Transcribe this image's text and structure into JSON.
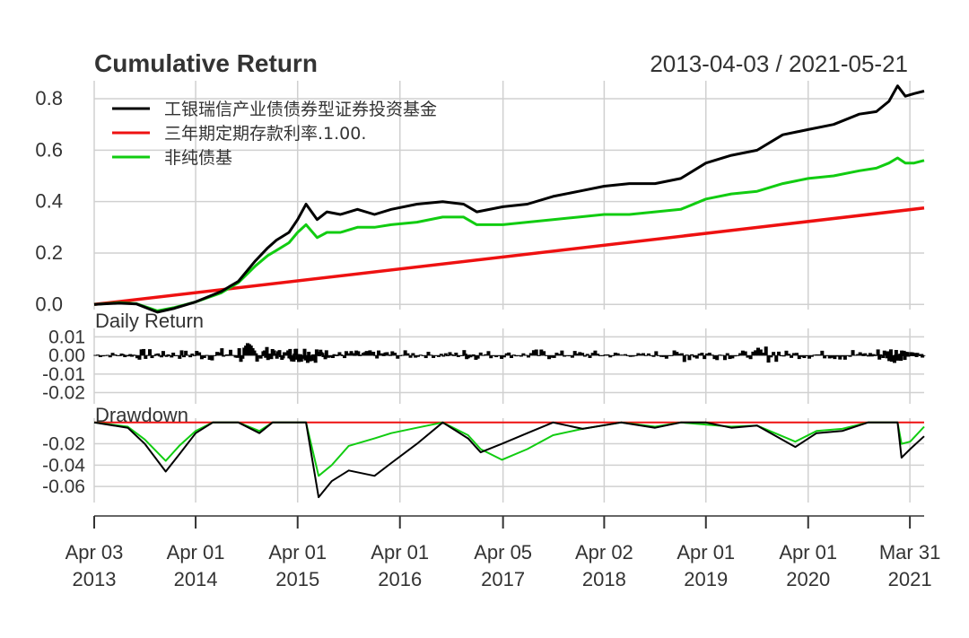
{
  "chart_data": [
    {
      "type": "line",
      "title": "Cumulative Return",
      "date_range": "2013-04-03 / 2021-05-21",
      "x_start": "2013-04-03",
      "x_end": "2021-05-21",
      "ylim": [
        -0.02,
        0.87
      ],
      "yticks": [
        "0.0",
        "0.2",
        "0.4",
        "0.6",
        "0.8"
      ],
      "ytick_values": [
        0.0,
        0.2,
        0.4,
        0.6,
        0.8
      ],
      "grid": true,
      "legend_position": "top-left",
      "series": [
        {
          "name": "工银瑞信产业债债券型证券投资基金",
          "color": "#000000",
          "points": [
            [
              "2013-04-03",
              0.0
            ],
            [
              "2013-07-01",
              0.005
            ],
            [
              "2013-09-01",
              0.002
            ],
            [
              "2013-11-15",
              -0.03
            ],
            [
              "2014-01-15",
              -0.015
            ],
            [
              "2014-04-01",
              0.01
            ],
            [
              "2014-07-01",
              0.05
            ],
            [
              "2014-09-01",
              0.09
            ],
            [
              "2014-11-01",
              0.17
            ],
            [
              "2014-12-15",
              0.22
            ],
            [
              "2015-01-15",
              0.25
            ],
            [
              "2015-03-01",
              0.28
            ],
            [
              "2015-04-01",
              0.33
            ],
            [
              "2015-05-01",
              0.39
            ],
            [
              "2015-06-10",
              0.33
            ],
            [
              "2015-07-15",
              0.36
            ],
            [
              "2015-09-01",
              0.35
            ],
            [
              "2015-11-01",
              0.37
            ],
            [
              "2016-01-01",
              0.35
            ],
            [
              "2016-03-01",
              0.37
            ],
            [
              "2016-06-01",
              0.39
            ],
            [
              "2016-09-01",
              0.4
            ],
            [
              "2016-11-15",
              0.39
            ],
            [
              "2017-01-01",
              0.36
            ],
            [
              "2017-04-05",
              0.38
            ],
            [
              "2017-07-01",
              0.39
            ],
            [
              "2017-10-01",
              0.42
            ],
            [
              "2018-01-01",
              0.44
            ],
            [
              "2018-04-02",
              0.46
            ],
            [
              "2018-07-01",
              0.47
            ],
            [
              "2018-10-01",
              0.47
            ],
            [
              "2019-01-01",
              0.49
            ],
            [
              "2019-04-01",
              0.55
            ],
            [
              "2019-07-01",
              0.58
            ],
            [
              "2019-10-01",
              0.6
            ],
            [
              "2020-01-01",
              0.66
            ],
            [
              "2020-04-01",
              0.68
            ],
            [
              "2020-07-01",
              0.7
            ],
            [
              "2020-10-01",
              0.74
            ],
            [
              "2020-12-01",
              0.75
            ],
            [
              "2021-01-15",
              0.79
            ],
            [
              "2021-02-15",
              0.85
            ],
            [
              "2021-03-15",
              0.81
            ],
            [
              "2021-04-15",
              0.82
            ],
            [
              "2021-05-21",
              0.83
            ]
          ]
        },
        {
          "name": "三年期定期存款利率.1.00.",
          "color": "#ee1111",
          "points": [
            [
              "2013-04-03",
              0.0
            ],
            [
              "2021-05-21",
              0.375
            ]
          ]
        },
        {
          "name": "非纯债基",
          "color": "#11cc11",
          "points": [
            [
              "2013-04-03",
              0.0
            ],
            [
              "2013-07-01",
              0.007
            ],
            [
              "2013-09-01",
              0.003
            ],
            [
              "2013-11-15",
              -0.025
            ],
            [
              "2014-01-15",
              -0.012
            ],
            [
              "2014-04-01",
              0.01
            ],
            [
              "2014-07-01",
              0.045
            ],
            [
              "2014-09-01",
              0.085
            ],
            [
              "2014-11-01",
              0.15
            ],
            [
              "2014-12-15",
              0.19
            ],
            [
              "2015-01-15",
              0.21
            ],
            [
              "2015-03-01",
              0.24
            ],
            [
              "2015-04-01",
              0.28
            ],
            [
              "2015-05-01",
              0.31
            ],
            [
              "2015-06-10",
              0.26
            ],
            [
              "2015-07-15",
              0.28
            ],
            [
              "2015-09-01",
              0.28
            ],
            [
              "2015-11-01",
              0.3
            ],
            [
              "2016-01-01",
              0.3
            ],
            [
              "2016-03-01",
              0.31
            ],
            [
              "2016-06-01",
              0.32
            ],
            [
              "2016-09-01",
              0.34
            ],
            [
              "2016-11-15",
              0.34
            ],
            [
              "2017-01-01",
              0.31
            ],
            [
              "2017-04-05",
              0.31
            ],
            [
              "2017-07-01",
              0.32
            ],
            [
              "2017-10-01",
              0.33
            ],
            [
              "2018-01-01",
              0.34
            ],
            [
              "2018-04-02",
              0.35
            ],
            [
              "2018-07-01",
              0.35
            ],
            [
              "2018-10-01",
              0.36
            ],
            [
              "2019-01-01",
              0.37
            ],
            [
              "2019-04-01",
              0.41
            ],
            [
              "2019-07-01",
              0.43
            ],
            [
              "2019-10-01",
              0.44
            ],
            [
              "2020-01-01",
              0.47
            ],
            [
              "2020-04-01",
              0.49
            ],
            [
              "2020-07-01",
              0.5
            ],
            [
              "2020-10-01",
              0.52
            ],
            [
              "2020-12-01",
              0.53
            ],
            [
              "2021-01-15",
              0.55
            ],
            [
              "2021-02-15",
              0.57
            ],
            [
              "2021-03-15",
              0.55
            ],
            [
              "2021-04-15",
              0.55
            ],
            [
              "2021-05-21",
              0.56
            ]
          ]
        }
      ]
    },
    {
      "type": "bar",
      "title": "Daily Return",
      "ylim": [
        -0.026,
        0.014
      ],
      "yticks": [
        "0.01",
        "0.00",
        "-0.01",
        "-0.02"
      ],
      "ytick_values": [
        0.01,
        0.0,
        -0.01,
        -0.02
      ],
      "color": "#000000",
      "grid": true
    },
    {
      "type": "area",
      "title": "Drawdown",
      "ylim": [
        -0.075,
        0.0
      ],
      "yticks": [
        "-0.02",
        "-0.04",
        "-0.06"
      ],
      "ytick_values": [
        -0.02,
        -0.04,
        -0.06
      ],
      "grid": true,
      "series": [
        {
          "name": "工银瑞信产业债债券型证券投资基金",
          "color": "#000000",
          "points": [
            [
              "2013-04-03",
              0.0
            ],
            [
              "2013-08-01",
              -0.005
            ],
            [
              "2013-10-01",
              -0.02
            ],
            [
              "2013-12-15",
              -0.046
            ],
            [
              "2014-02-01",
              -0.03
            ],
            [
              "2014-04-01",
              -0.01
            ],
            [
              "2014-06-01",
              0.0
            ],
            [
              "2014-09-01",
              0.0
            ],
            [
              "2014-11-15",
              -0.01
            ],
            [
              "2015-01-01",
              0.0
            ],
            [
              "2015-04-01",
              0.0
            ],
            [
              "2015-05-01",
              0.0
            ],
            [
              "2015-06-15",
              -0.07
            ],
            [
              "2015-08-01",
              -0.055
            ],
            [
              "2015-10-01",
              -0.045
            ],
            [
              "2016-01-01",
              -0.05
            ],
            [
              "2016-03-01",
              -0.038
            ],
            [
              "2016-06-01",
              -0.02
            ],
            [
              "2016-09-01",
              0.0
            ],
            [
              "2016-12-01",
              -0.015
            ],
            [
              "2017-01-15",
              -0.028
            ],
            [
              "2017-04-01",
              -0.02
            ],
            [
              "2017-07-01",
              -0.01
            ],
            [
              "2017-10-01",
              0.0
            ],
            [
              "2018-01-15",
              -0.006
            ],
            [
              "2018-06-01",
              0.0
            ],
            [
              "2018-10-01",
              -0.005
            ],
            [
              "2019-01-01",
              0.0
            ],
            [
              "2019-04-01",
              0.0
            ],
            [
              "2019-07-01",
              -0.005
            ],
            [
              "2019-10-01",
              -0.003
            ],
            [
              "2020-02-15",
              -0.023
            ],
            [
              "2020-05-01",
              -0.01
            ],
            [
              "2020-08-01",
              -0.008
            ],
            [
              "2020-11-01",
              0.0
            ],
            [
              "2021-02-15",
              0.0
            ],
            [
              "2021-03-01",
              -0.033
            ],
            [
              "2021-04-01",
              -0.025
            ],
            [
              "2021-05-21",
              -0.013
            ]
          ]
        },
        {
          "name": "非纯债基",
          "color": "#11cc11",
          "points": [
            [
              "2013-04-03",
              0.0
            ],
            [
              "2013-08-01",
              -0.004
            ],
            [
              "2013-10-01",
              -0.016
            ],
            [
              "2013-12-15",
              -0.036
            ],
            [
              "2014-02-01",
              -0.022
            ],
            [
              "2014-04-01",
              -0.008
            ],
            [
              "2014-06-01",
              0.0
            ],
            [
              "2014-09-01",
              0.0
            ],
            [
              "2014-11-15",
              -0.008
            ],
            [
              "2015-01-01",
              0.0
            ],
            [
              "2015-05-01",
              0.0
            ],
            [
              "2015-06-15",
              -0.05
            ],
            [
              "2015-08-01",
              -0.04
            ],
            [
              "2015-10-01",
              -0.022
            ],
            [
              "2016-01-01",
              -0.015
            ],
            [
              "2016-03-01",
              -0.01
            ],
            [
              "2016-06-01",
              -0.005
            ],
            [
              "2016-09-01",
              0.0
            ],
            [
              "2016-12-01",
              -0.012
            ],
            [
              "2017-01-15",
              -0.025
            ],
            [
              "2017-04-01",
              -0.035
            ],
            [
              "2017-07-01",
              -0.025
            ],
            [
              "2017-10-01",
              -0.012
            ],
            [
              "2018-01-15",
              -0.006
            ],
            [
              "2018-06-01",
              0.0
            ],
            [
              "2018-10-01",
              -0.004
            ],
            [
              "2019-01-01",
              0.0
            ],
            [
              "2019-07-01",
              -0.004
            ],
            [
              "2019-10-01",
              -0.003
            ],
            [
              "2020-02-15",
              -0.018
            ],
            [
              "2020-05-01",
              -0.008
            ],
            [
              "2020-08-01",
              -0.006
            ],
            [
              "2020-11-01",
              0.0
            ],
            [
              "2021-02-15",
              0.0
            ],
            [
              "2021-03-01",
              -0.02
            ],
            [
              "2021-04-01",
              -0.018
            ],
            [
              "2021-05-21",
              -0.004
            ]
          ]
        },
        {
          "name": "三年期定期存款利率.1.00.",
          "color": "#ee1111",
          "points": [
            [
              "2013-04-03",
              0.0
            ],
            [
              "2021-05-21",
              0.0
            ]
          ]
        }
      ]
    }
  ],
  "x_axis": {
    "ticks": [
      {
        "date": "2013-04-03",
        "line1": "Apr 03",
        "line2": "2013"
      },
      {
        "date": "2014-04-01",
        "line1": "Apr 01",
        "line2": "2014"
      },
      {
        "date": "2015-04-01",
        "line1": "Apr 01",
        "line2": "2015"
      },
      {
        "date": "2016-04-01",
        "line1": "Apr 01",
        "line2": "2016"
      },
      {
        "date": "2017-04-05",
        "line1": "Apr 05",
        "line2": "2017"
      },
      {
        "date": "2018-04-02",
        "line1": "Apr 02",
        "line2": "2018"
      },
      {
        "date": "2019-04-01",
        "line1": "Apr 01",
        "line2": "2019"
      },
      {
        "date": "2020-04-01",
        "line1": "Apr 01",
        "line2": "2020"
      },
      {
        "date": "2021-03-31",
        "line1": "Mar 31",
        "line2": "2021"
      }
    ]
  },
  "colors": {
    "grid": "#d0d0d0",
    "axis": "#333333",
    "text": "#333333"
  }
}
